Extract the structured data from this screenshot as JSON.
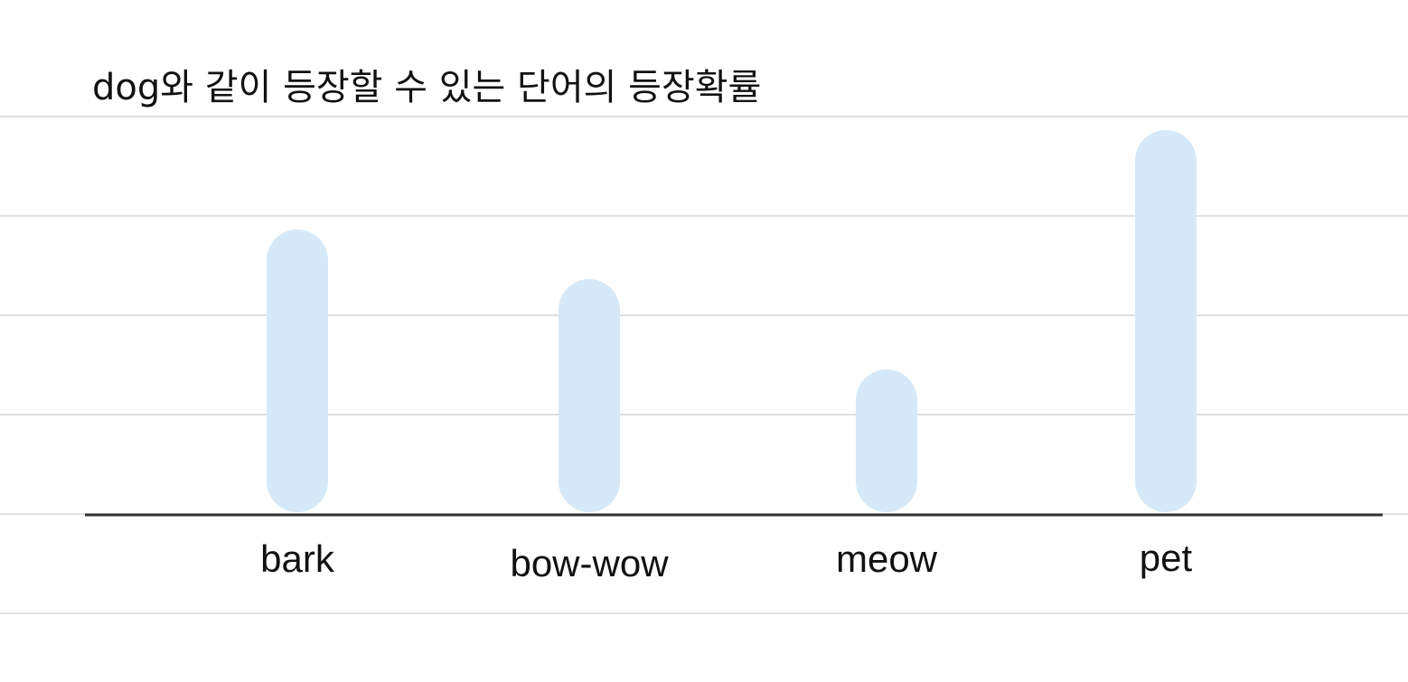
{
  "chart_data": {
    "type": "bar",
    "title": "dog와 같이 등장할 수 있는 단어의 등장확률",
    "xlabel": "",
    "ylabel": "",
    "categories": [
      "bark",
      "bow-wow",
      "meow",
      "pet"
    ],
    "values": [
      3.15,
      2.6,
      1.6,
      4.25
    ],
    "ylim": [
      0,
      4.4
    ],
    "grid": true,
    "legend": "none",
    "bar_color": "#d6e9f8",
    "baseline_color": "#333333",
    "grid_color": "#d6d6d6"
  }
}
